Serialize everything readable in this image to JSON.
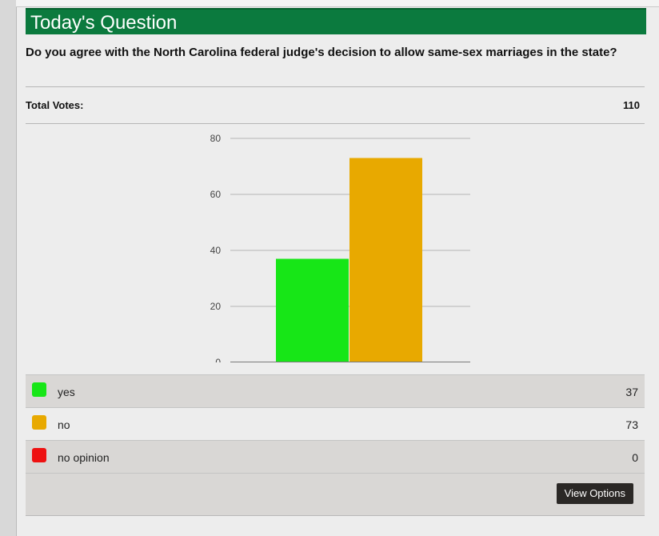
{
  "poll": {
    "title": "Today's Question",
    "question": "Do you agree with the North Carolina federal judge's decision to allow same-sex marriages in the state?",
    "total_votes_label": "Total Votes:",
    "total_votes": "110",
    "view_options_label": "View Options"
  },
  "legend": [
    {
      "label": "yes",
      "value": "37",
      "color": "#17e617"
    },
    {
      "label": "no",
      "value": "73",
      "color": "#e8a900"
    },
    {
      "label": "no opinion",
      "value": "0",
      "color": "#ee1111"
    }
  ],
  "chart_data": {
    "type": "bar",
    "categories": [
      "yes",
      "no",
      "no opinion"
    ],
    "values": [
      37,
      73,
      0
    ],
    "colors": [
      "#17e617",
      "#e8a900",
      "#ee1111"
    ],
    "ylim": [
      0,
      80
    ],
    "yticks": [
      0,
      20,
      40,
      60,
      80
    ],
    "grid": true
  }
}
